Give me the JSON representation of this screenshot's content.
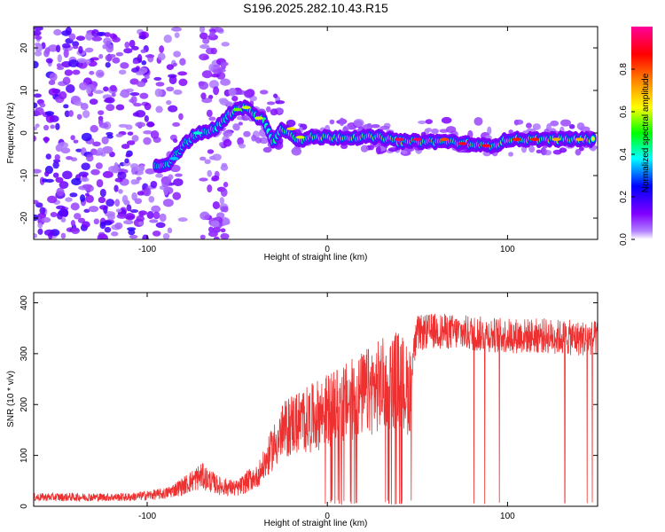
{
  "title": "S196.2025.282.10.43.R15",
  "chart_data": [
    {
      "type": "heatmap",
      "title": "S196.2025.282.10.43.R15",
      "xlabel": "Height of straight line (km)",
      "ylabel": "Frequency (Hz)",
      "xlim": [
        -163,
        150
      ],
      "ylim": [
        -25,
        25
      ],
      "xticks": [
        -100,
        0,
        100
      ],
      "yticks": [
        -20,
        -10,
        0,
        10,
        20
      ],
      "colorbar": {
        "label": "Normalized spectral amplitude",
        "range": [
          0,
          1
        ],
        "ticks": [
          "0.0",
          "0.2",
          "0.4",
          "0.6",
          "0.8"
        ],
        "tick_values": [
          0.0,
          0.2,
          0.4,
          0.6,
          0.8
        ],
        "colors": [
          "#ffffff",
          "#8000ff",
          "#0000ff",
          "#00ffff",
          "#00ff00",
          "#ffff00",
          "#ff8000",
          "#ff0000",
          "#ff00aa"
        ]
      },
      "ridge": {
        "x": [
          -95,
          -88,
          -80,
          -75,
          -70,
          -62,
          -55,
          -50,
          -45,
          -40,
          -35,
          -30,
          -25,
          -20,
          -15,
          -10,
          0,
          10,
          20,
          30,
          40,
          50,
          60,
          70,
          75,
          80,
          85,
          90,
          95,
          100,
          110,
          120,
          130,
          140,
          148
        ],
        "freq": [
          -8,
          -7,
          -3,
          -1,
          0,
          1,
          4,
          6,
          6,
          4,
          3,
          -2,
          1,
          0,
          -2,
          -1,
          -1,
          -1,
          -1,
          -1,
          -2,
          -2,
          -2,
          -2,
          -2.5,
          -2.5,
          -3,
          -3,
          -2.5,
          -1.5,
          -1.5,
          -1.5,
          -1.5,
          -1.5,
          -1.5
        ],
        "amplitude": [
          0.3,
          0.3,
          0.3,
          0.35,
          0.4,
          0.4,
          0.45,
          0.5,
          0.5,
          0.5,
          0.5,
          0.45,
          0.55,
          0.55,
          0.55,
          0.6,
          0.7,
          0.75,
          0.75,
          0.8,
          0.85,
          0.85,
          0.85,
          0.85,
          0.9,
          0.85,
          0.85,
          0.85,
          0.8,
          0.75,
          0.75,
          0.7,
          0.7,
          0.7,
          0.7
        ]
      }
    },
    {
      "type": "line",
      "xlabel": "Height of straight line (km)",
      "ylabel": "SNR (10 * v/v)",
      "xlim": [
        -163,
        150
      ],
      "ylim": [
        0,
        420
      ],
      "xticks": [
        -100,
        0,
        100
      ],
      "yticks": [
        0,
        100,
        200,
        300,
        400
      ],
      "color": "#ee3030",
      "envelope": {
        "x": [
          -163,
          -110,
          -90,
          -80,
          -70,
          -60,
          -50,
          -40,
          -35,
          -30,
          -25,
          -20,
          -15,
          -10,
          -5,
          0,
          10,
          20,
          30,
          40,
          45,
          50,
          60,
          80,
          100,
          120,
          140,
          150
        ],
        "y": [
          18,
          18,
          25,
          40,
          60,
          40,
          35,
          60,
          90,
          130,
          160,
          180,
          185,
          190,
          200,
          210,
          225,
          245,
          265,
          280,
          250,
          340,
          345,
          340,
          335,
          335,
          330,
          330
        ]
      }
    }
  ]
}
